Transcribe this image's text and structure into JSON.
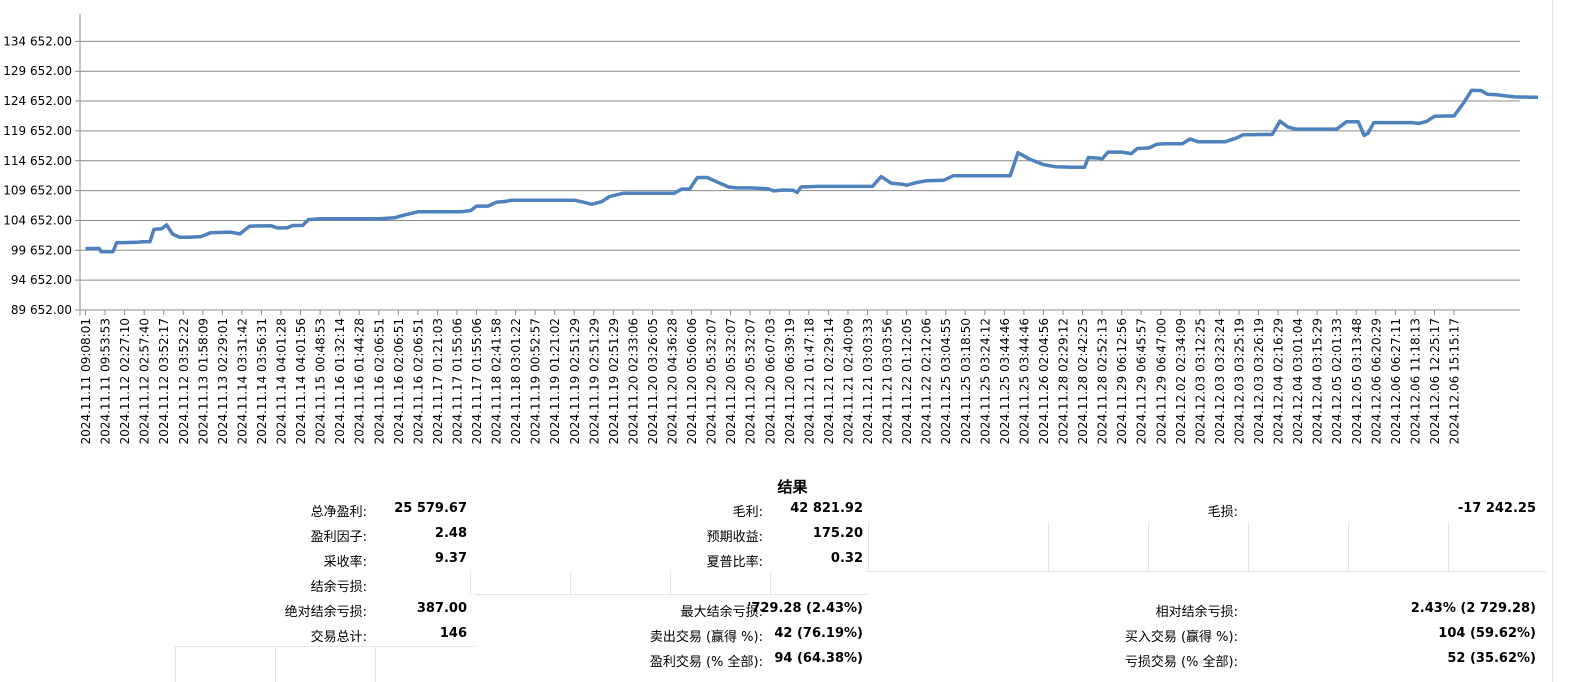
{
  "chart_data": {
    "type": "line",
    "ylim": [
      89652,
      136000
    ],
    "ytick_values": [
      89652,
      94652,
      99652,
      104652,
      109652,
      114652,
      119652,
      124652,
      129652,
      134652
    ],
    "ytick_labels": [
      "89 652.00",
      "94 652.00",
      "99 652.00",
      "104 652.00",
      "109 652.00",
      "114 652.00",
      "119 652.00",
      "124 652.00",
      "129 652.00",
      "134 652.00"
    ],
    "x_tick_labels": [
      "2024.11.11 09:08:01",
      "2024.11.11 09:53:53",
      "2024.11.12 02:27:10",
      "2024.11.12 02:57:40",
      "2024.11.12 03:52:17",
      "2024.11.12 03:52:22",
      "2024.11.13 01:58:09",
      "2024.11.13 02:29:01",
      "2024.11.14 03:31:42",
      "2024.11.14 03:56:31",
      "2024.11.14 04:01:28",
      "2024.11.14 04:01:56",
      "2024.11.15 00:48:53",
      "2024.11.16 01:32:14",
      "2024.11.16 01:44:28",
      "2024.11.16 02:06:51",
      "2024.11.16 02:06:51",
      "2024.11.16 02:06:51",
      "2024.11.17 01:21:03",
      "2024.11.17 01:55:06",
      "2024.11.17 01:55:06",
      "2024.11.18 02:41:58",
      "2024.11.18 03:01:22",
      "2024.11.19 00:52:57",
      "2024.11.19 01:21:02",
      "2024.11.19 02:51:29",
      "2024.11.19 02:51:29",
      "2024.11.19 02:51:29",
      "2024.11.20 02:33:06",
      "2024.11.20 03:26:05",
      "2024.11.20 04:36:28",
      "2024.11.20 05:06:06",
      "2024.11.20 05:32:07",
      "2024.11.20 05:32:07",
      "2024.11.20 05:32:07",
      "2024.11.20 06:07:03",
      "2024.11.20 06:39:19",
      "2024.11.21 01:47:18",
      "2024.11.21 02:29:14",
      "2024.11.21 02:40:09",
      "2024.11.21 03:03:33",
      "2024.11.21 03:03:56",
      "2024.11.22 01:12:05",
      "2024.11.22 02:12:06",
      "2024.11.25 03:04:55",
      "2024.11.25 03:18:50",
      "2024.11.25 03:24:12",
      "2024.11.25 03:44:46",
      "2024.11.25 03:44:46",
      "2024.11.26 02:04:56",
      "2024.11.28 02:29:12",
      "2024.11.28 02:42:25",
      "2024.11.28 02:52:13",
      "2024.11.29 06:12:56",
      "2024.11.29 06:45:57",
      "2024.11.29 06:47:00",
      "2024.12.02 02:34:09",
      "2024.12.03 03:12:25",
      "2024.12.03 03:23:24",
      "2024.12.03 03:25:19",
      "2024.12.03 03:26:19",
      "2024.12.04 02:16:29",
      "2024.12.04 03:01:04",
      "2024.12.04 03:15:29",
      "2024.12.05 02:01:33",
      "2024.12.05 03:13:48",
      "2024.12.06 06:20:29",
      "2024.12.06 06:27:11",
      "2024.12.06 11:18:13",
      "2024.12.06 12:25:17",
      "2024.12.06 15:15:17"
    ],
    "series": [
      {
        "color": "#4f81bd",
        "points": [
          [
            0,
            99950
          ],
          [
            0.7,
            99950
          ],
          [
            0.8,
            99400
          ],
          [
            1.4,
            99400
          ],
          [
            1.6,
            100950
          ],
          [
            2.0,
            100950
          ],
          [
            2.7,
            101000
          ],
          [
            2.9,
            101100
          ],
          [
            3.3,
            101100
          ],
          [
            3.5,
            103150
          ],
          [
            3.9,
            103250
          ],
          [
            4.15,
            103900
          ],
          [
            4.45,
            102400
          ],
          [
            4.8,
            101850
          ],
          [
            5.3,
            101850
          ],
          [
            5.9,
            101950
          ],
          [
            6.4,
            102600
          ],
          [
            7.4,
            102700
          ],
          [
            7.9,
            102400
          ],
          [
            8.4,
            103700
          ],
          [
            9.5,
            103750
          ],
          [
            9.8,
            103400
          ],
          [
            10.3,
            103400
          ],
          [
            10.6,
            103800
          ],
          [
            11.1,
            103800
          ],
          [
            11.4,
            104800
          ],
          [
            12.0,
            104950
          ],
          [
            13.8,
            104950
          ],
          [
            15.0,
            104950
          ],
          [
            15.8,
            105100
          ],
          [
            16.3,
            105550
          ],
          [
            17.0,
            106100
          ],
          [
            19.2,
            106100
          ],
          [
            19.7,
            106300
          ],
          [
            20.0,
            107050
          ],
          [
            20.6,
            107050
          ],
          [
            21.0,
            107700
          ],
          [
            21.5,
            107850
          ],
          [
            21.8,
            108050
          ],
          [
            22.3,
            108050
          ],
          [
            24.5,
            108050
          ],
          [
            25.0,
            108050
          ],
          [
            25.5,
            107700
          ],
          [
            25.9,
            107350
          ],
          [
            26.4,
            107800
          ],
          [
            26.8,
            108650
          ],
          [
            27.5,
            109200
          ],
          [
            29.3,
            109200
          ],
          [
            30.1,
            109200
          ],
          [
            30.5,
            109900
          ],
          [
            30.9,
            109900
          ],
          [
            31.3,
            111850
          ],
          [
            31.8,
            111850
          ],
          [
            32.5,
            110800
          ],
          [
            32.9,
            110250
          ],
          [
            33.3,
            110100
          ],
          [
            34.0,
            110100
          ],
          [
            34.9,
            109950
          ],
          [
            35.2,
            109600
          ],
          [
            35.7,
            109750
          ],
          [
            36.2,
            109700
          ],
          [
            36.4,
            109350
          ],
          [
            36.6,
            110250
          ],
          [
            37.5,
            110350
          ],
          [
            38.5,
            110350
          ],
          [
            39.9,
            110350
          ],
          [
            40.25,
            110350
          ],
          [
            40.7,
            112000
          ],
          [
            41.2,
            110900
          ],
          [
            41.8,
            110700
          ],
          [
            42.0,
            110550
          ],
          [
            42.5,
            111000
          ],
          [
            43.0,
            111300
          ],
          [
            43.9,
            111400
          ],
          [
            44.4,
            112150
          ],
          [
            45.5,
            112150
          ],
          [
            46.2,
            112150
          ],
          [
            47.1,
            112150
          ],
          [
            47.3,
            112150
          ],
          [
            47.7,
            116000
          ],
          [
            48.3,
            114900
          ],
          [
            49.0,
            114000
          ],
          [
            49.6,
            113650
          ],
          [
            50.5,
            113550
          ],
          [
            51.1,
            113550
          ],
          [
            51.3,
            115200
          ],
          [
            51.8,
            115100
          ],
          [
            52.0,
            114950
          ],
          [
            52.3,
            116100
          ],
          [
            53.0,
            116100
          ],
          [
            53.5,
            115850
          ],
          [
            53.8,
            116700
          ],
          [
            54.4,
            116800
          ],
          [
            54.8,
            117400
          ],
          [
            55.2,
            117500
          ],
          [
            56.1,
            117500
          ],
          [
            56.5,
            118300
          ],
          [
            56.9,
            117850
          ],
          [
            57.4,
            117850
          ],
          [
            58.3,
            117850
          ],
          [
            58.9,
            118500
          ],
          [
            59.2,
            119000
          ],
          [
            60.3,
            119050
          ],
          [
            60.7,
            119050
          ],
          [
            61.1,
            121300
          ],
          [
            61.5,
            120300
          ],
          [
            61.9,
            119950
          ],
          [
            62.5,
            119950
          ],
          [
            63.3,
            119950
          ],
          [
            64.0,
            119950
          ],
          [
            64.5,
            121200
          ],
          [
            65.1,
            121200
          ],
          [
            65.4,
            118900
          ],
          [
            65.6,
            119250
          ],
          [
            65.9,
            121050
          ],
          [
            66.6,
            121050
          ],
          [
            67.3,
            121050
          ],
          [
            67.8,
            121050
          ],
          [
            68.2,
            120900
          ],
          [
            68.6,
            121250
          ],
          [
            69.0,
            122100
          ],
          [
            69.6,
            122150
          ],
          [
            70.0,
            122150
          ],
          [
            70.5,
            124400
          ],
          [
            70.9,
            126450
          ],
          [
            71.4,
            126400
          ],
          [
            71.7,
            125800
          ],
          [
            72.2,
            125700
          ],
          [
            72.7,
            125500
          ],
          [
            73.1,
            125350
          ],
          [
            74.0,
            125300
          ],
          [
            74.3,
            125300
          ]
        ]
      }
    ]
  },
  "results": {
    "title": "结果",
    "col1": [
      {
        "label": "总净盈利:",
        "value": "25 579.67"
      },
      {
        "label": "盈利因子:",
        "value": "2.48"
      },
      {
        "label": "采收率:",
        "value": "9.37"
      },
      {
        "label": "结余亏损:",
        "value": ""
      },
      {
        "label": "绝对结余亏损:",
        "value": "387.00"
      },
      {
        "label": "交易总计:",
        "value": "146"
      }
    ],
    "col2": [
      {
        "label": "毛利:",
        "value": "42 821.92"
      },
      {
        "label": "预期收益:",
        "value": "175.20"
      },
      {
        "label": "夏普比率:",
        "value": "0.32"
      },
      {
        "label": "",
        "value": ""
      },
      {
        "label": "最大结余亏损:",
        "value": "'729.28 (2.43%)"
      },
      {
        "label": "卖出交易 (赢得 %):",
        "value": "42 (76.19%)"
      },
      {
        "label": "盈利交易 (% 全部):",
        "value": "94 (64.38%)"
      }
    ],
    "col3": [
      {
        "label": "毛损:",
        "value": "-17 242.25"
      },
      {
        "label": "",
        "value": ""
      },
      {
        "label": "",
        "value": ""
      },
      {
        "label": "",
        "value": ""
      },
      {
        "label": "相对结余亏损:",
        "value": "2.43% (2 729.28)"
      },
      {
        "label": "买入交易 (赢得 %):",
        "value": "104 (59.62%)"
      },
      {
        "label": "亏损交易 (% 全部):",
        "value": "52 (35.62%)"
      }
    ]
  }
}
